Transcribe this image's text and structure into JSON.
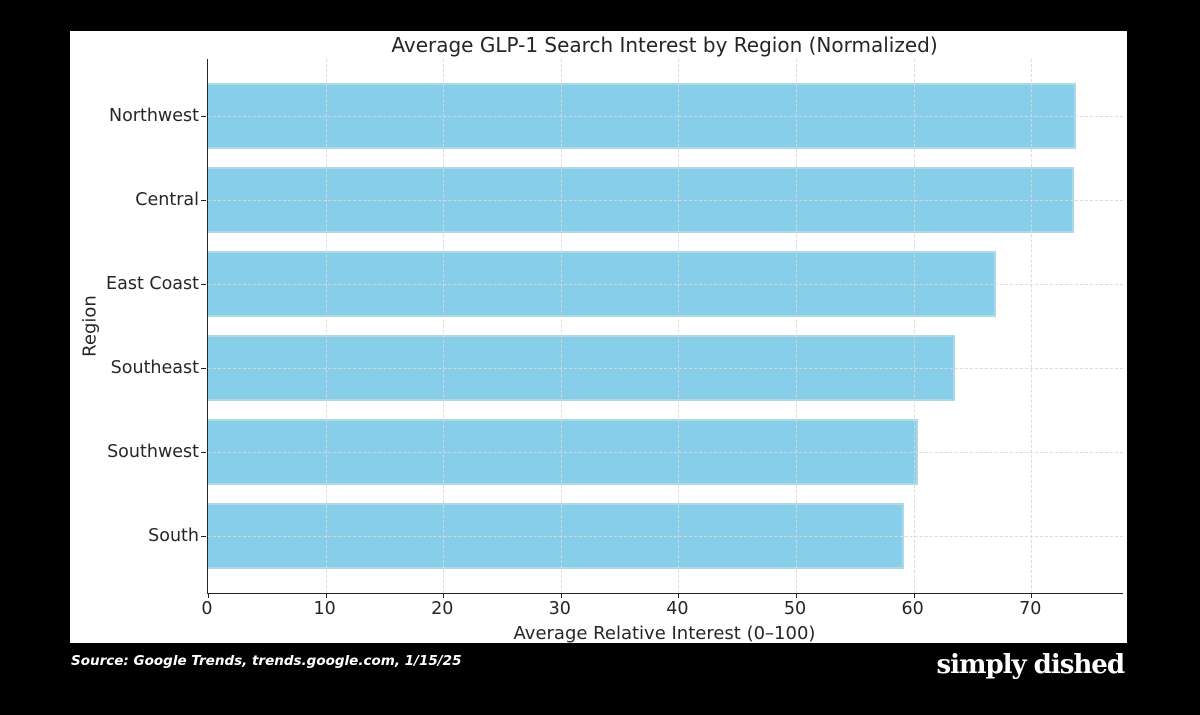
{
  "page": {
    "background_color": "#000000",
    "panel_color": "#ffffff",
    "text_color": "#262626"
  },
  "chart_data": {
    "type": "bar",
    "orientation": "horizontal",
    "title": "Average GLP-1 Search Interest by Region (Normalized)",
    "xlabel": "Average Relative Interest (0–100)",
    "ylabel": "Region",
    "categories": [
      "Northwest",
      "Central",
      "East Coast",
      "Southeast",
      "Southwest",
      "South"
    ],
    "values": [
      73.8,
      73.6,
      67,
      63.5,
      60.4,
      59.2
    ],
    "xticks": [
      0,
      10,
      20,
      30,
      40,
      50,
      60,
      70
    ],
    "xlim": [
      0,
      77.8
    ],
    "bar_color": "#87CEEB",
    "bar_edge_color": "#ADD8E6",
    "grid": true,
    "grid_style": "dashed",
    "grid_color": "#d8d8d8",
    "grid_on_top_of_bars": true,
    "legend_position": "none"
  },
  "footer": {
    "source": "Source: Google Trends, trends.google.com, 1/15/25",
    "brand": "simply dished"
  }
}
